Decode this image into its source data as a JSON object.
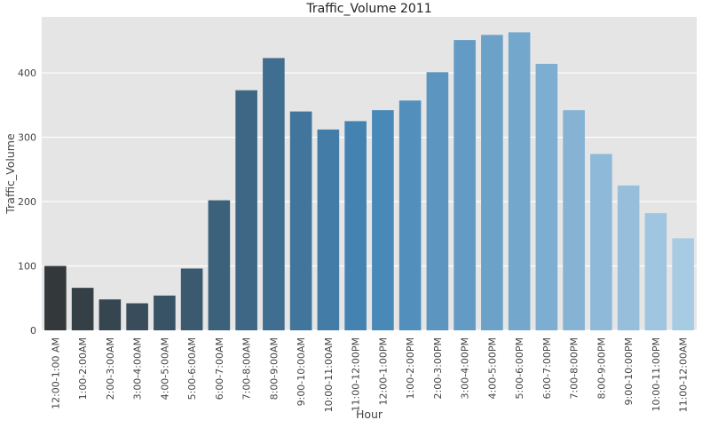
{
  "chart_data": {
    "type": "bar",
    "title": "Traffic_Volume 2011",
    "xlabel": "Hour",
    "ylabel": "Traffic_Volume",
    "ylim": [
      0,
      487
    ],
    "yticks": [
      0,
      100,
      200,
      300,
      400
    ],
    "grid": true,
    "categories": [
      "12:00-1:00 AM",
      "1:00-2:00AM",
      "2:00-3:00AM",
      "3:00-4:00AM",
      "4:00-5:00AM",
      "5:00-6:00AM",
      "6:00-7:00AM",
      "7:00-8:00AM",
      "8:00-9:00AM",
      "9:00-10:00AM",
      "10:00-11:00AM",
      "11:00-12:00PM",
      "12:00-1:00PM",
      "1:00-2:00PM",
      "2:00-3:00PM",
      "3:00-4:00PM",
      "4:00-5:00PM",
      "5:00-6:00PM",
      "6:00-7:00PM",
      "7:00-8:00PM",
      "8:00-9:00PM",
      "9:00-10:00PM",
      "10:00-11:00PM",
      "11:00-12:00AM"
    ],
    "values": [
      100,
      66,
      48,
      42,
      54,
      96,
      202,
      373,
      423,
      340,
      312,
      325,
      342,
      357,
      401,
      451,
      459,
      463,
      414,
      342,
      274,
      225,
      182,
      143
    ],
    "palette": [
      "#33383b",
      "#a8cbe4"
    ],
    "background": "#e5e5e5",
    "grid_color": "#ffffff"
  }
}
